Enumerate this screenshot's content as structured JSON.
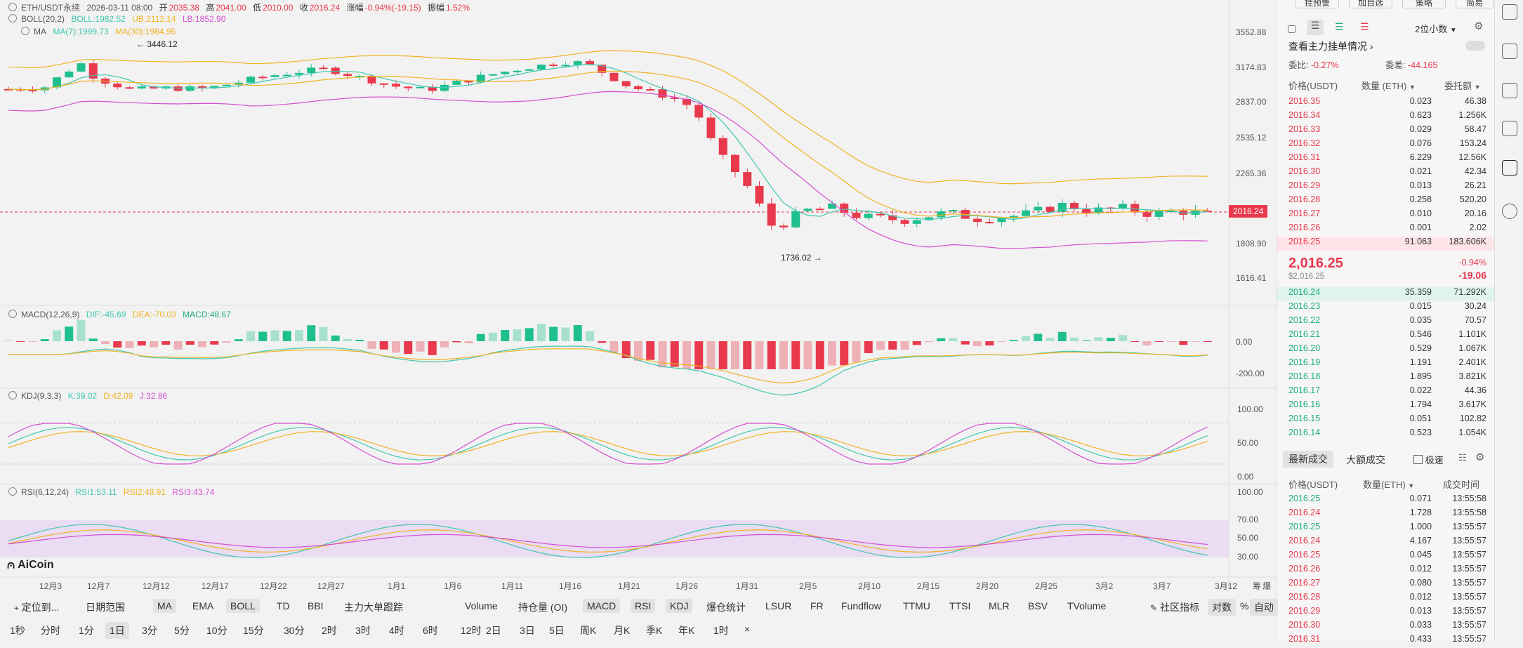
{
  "header": {
    "symbol": "ETH/USDT永续",
    "datetime": "2026-03-11 08:00",
    "open_label": "开",
    "open": "2035.38",
    "high_label": "高",
    "high": "2041.00",
    "low_label": "低",
    "low": "2010.00",
    "close_label": "收",
    "close": "2016.24",
    "change_label": "涨幅",
    "change": "-0.94%(-19.15)",
    "amplitude_label": "振幅",
    "amplitude": "1.52%"
  },
  "boll": {
    "name": "BOLL(20,2)",
    "mid": "BOLL:1982.52",
    "ub": "UB:2112.14",
    "lb": "LB:1852.90"
  },
  "ma": {
    "name": "MA",
    "ma7": "MA(7):1999.73",
    "ma30": "MA(30):1984.95"
  },
  "macd": {
    "name": "MACD(12,26,9)",
    "dif": "DIF:-45.69",
    "dea": "DEA:-70.03",
    "macd": "MACD:48.67"
  },
  "kdj": {
    "name": "KDJ(9,3,3)",
    "k": "K:39.02",
    "d": "D:42.09",
    "j": "J:32.86"
  },
  "rsi": {
    "name": "RSI(6,12,24)",
    "rsi1": "RSI1:53.11",
    "rsi2": "RSI2:48.91",
    "rsi3": "RSI3:43.74"
  },
  "price_axis": [
    "3552.88",
    "3174.83",
    "2837.00",
    "2535.12",
    "2265.36",
    "1808.90",
    "1616.41"
  ],
  "current_price_tag": "2016.24",
  "max_marker": "← 3446.12",
  "min_marker": "1736.02 →",
  "macd_axis": [
    "0.00",
    "-200.00"
  ],
  "kdj_axis": [
    "100.00",
    "50.00",
    "0.00"
  ],
  "rsi_axis": [
    "100.00",
    "70.00",
    "50.00",
    "30.00"
  ],
  "x_axis": [
    "12月3",
    "12月7",
    "12月12",
    "12月17",
    "12月22",
    "12月27",
    "1月1",
    "1月6",
    "1月11",
    "1月16",
    "1月21",
    "1月26",
    "1月31",
    "2月5",
    "2月10",
    "2月15",
    "2月20",
    "2月25",
    "3月2",
    "3月7",
    "3月12"
  ],
  "x_axis_extra": [
    "筹",
    "爆"
  ],
  "logo": "AiCoin",
  "colors": {
    "up": "#1fbf8f",
    "down": "#e8394d",
    "boll_upper": "#f0b323",
    "boll_mid": "#3fc7b0",
    "boll_lower": "#d64fcf"
  },
  "toolbar1": {
    "locate": "定位到...",
    "date_range": "日期范围",
    "indicators": [
      "MA",
      "EMA",
      "BOLL",
      "TD",
      "BBI",
      "主力大单跟踪"
    ],
    "sub_indicators": [
      "Volume",
      "持仓量 (OI)",
      "MACD",
      "RSI",
      "KDJ",
      "爆仓统计",
      "LSUR",
      "FR",
      "Fundflow",
      "TTMU",
      "TTSI",
      "MLR",
      "BSV",
      "TVolume"
    ],
    "community": "社区指标",
    "log": "对数",
    "percent": "%",
    "auto": "自动"
  },
  "toolbar2": {
    "intervals": [
      "1秒",
      "分时",
      "1分",
      "1日",
      "3分",
      "5分",
      "10分",
      "15分",
      "30分",
      "2时",
      "3时",
      "4时",
      "6时",
      "12时",
      "2日",
      "3日",
      "5日",
      "周K",
      "月K",
      "季K",
      "年K",
      "1时"
    ],
    "active": "1日",
    "close": "×"
  },
  "orderbook": {
    "top_buttons": [
      "挂预警",
      "加自选",
      "策略",
      "简易"
    ],
    "precision": "2位小数",
    "main_orders": "查看主力挂单情况",
    "ratio_label": "委比:",
    "ratio": "-0.27%",
    "diff_label": "委差:",
    "diff": "-44.165",
    "col_price": "价格(USDT)",
    "col_qty": "数量 (ETH)",
    "col_total": "委托额",
    "asks": [
      [
        "2016.35",
        "0.023",
        "46.38"
      ],
      [
        "2016.34",
        "0.623",
        "1.256K"
      ],
      [
        "2016.33",
        "0.029",
        "58.47"
      ],
      [
        "2016.32",
        "0.076",
        "153.24"
      ],
      [
        "2016.31",
        "6.229",
        "12.56K"
      ],
      [
        "2016.30",
        "0.021",
        "42.34"
      ],
      [
        "2016.29",
        "0.013",
        "26.21"
      ],
      [
        "2016.28",
        "0.258",
        "520.20"
      ],
      [
        "2016.27",
        "0.010",
        "20.16"
      ],
      [
        "2016.26",
        "0.001",
        "2.02"
      ],
      [
        "2016.25",
        "91.063",
        "183.606K"
      ]
    ],
    "last_price": "2,016.25",
    "last_price_usd": "$2,016.25",
    "last_change_pct": "-0.94%",
    "last_change": "-19.06",
    "bids": [
      [
        "2016.24",
        "35.359",
        "71.292K"
      ],
      [
        "2016.23",
        "0.015",
        "30.24"
      ],
      [
        "2016.22",
        "0.035",
        "70.57"
      ],
      [
        "2016.21",
        "0.546",
        "1.101K"
      ],
      [
        "2016.20",
        "0.529",
        "1.067K"
      ],
      [
        "2016.19",
        "1.191",
        "2.401K"
      ],
      [
        "2016.18",
        "1.895",
        "3.821K"
      ],
      [
        "2016.17",
        "0.022",
        "44.36"
      ],
      [
        "2016.16",
        "1.794",
        "3.617K"
      ],
      [
        "2016.15",
        "0.051",
        "102.82"
      ],
      [
        "2016.14",
        "0.523",
        "1.054K"
      ]
    ]
  },
  "trades": {
    "tab_latest": "最新成交",
    "tab_large": "大额成交",
    "fast_label": "极速",
    "col_price": "价格(USDT)",
    "col_qty": "数量(ETH)",
    "col_time": "成交时间",
    "rows": [
      [
        "2016.25",
        "0.071",
        "13:55:58",
        "g"
      ],
      [
        "2016.24",
        "1.728",
        "13:55:58",
        "r"
      ],
      [
        "2016.25",
        "1.000",
        "13:55:57",
        "g"
      ],
      [
        "2016.24",
        "4.167",
        "13:55:57",
        "r"
      ],
      [
        "2016.25",
        "0.045",
        "13:55:57",
        "r"
      ],
      [
        "2016.26",
        "0.012",
        "13:55:57",
        "r"
      ],
      [
        "2016.27",
        "0.080",
        "13:55:57",
        "r"
      ],
      [
        "2016.28",
        "0.012",
        "13:55:57",
        "r"
      ],
      [
        "2016.29",
        "0.013",
        "13:55:57",
        "r"
      ],
      [
        "2016.30",
        "0.033",
        "13:55:57",
        "r"
      ],
      [
        "2016.31",
        "0.433",
        "13:55:57",
        "r"
      ]
    ]
  }
}
